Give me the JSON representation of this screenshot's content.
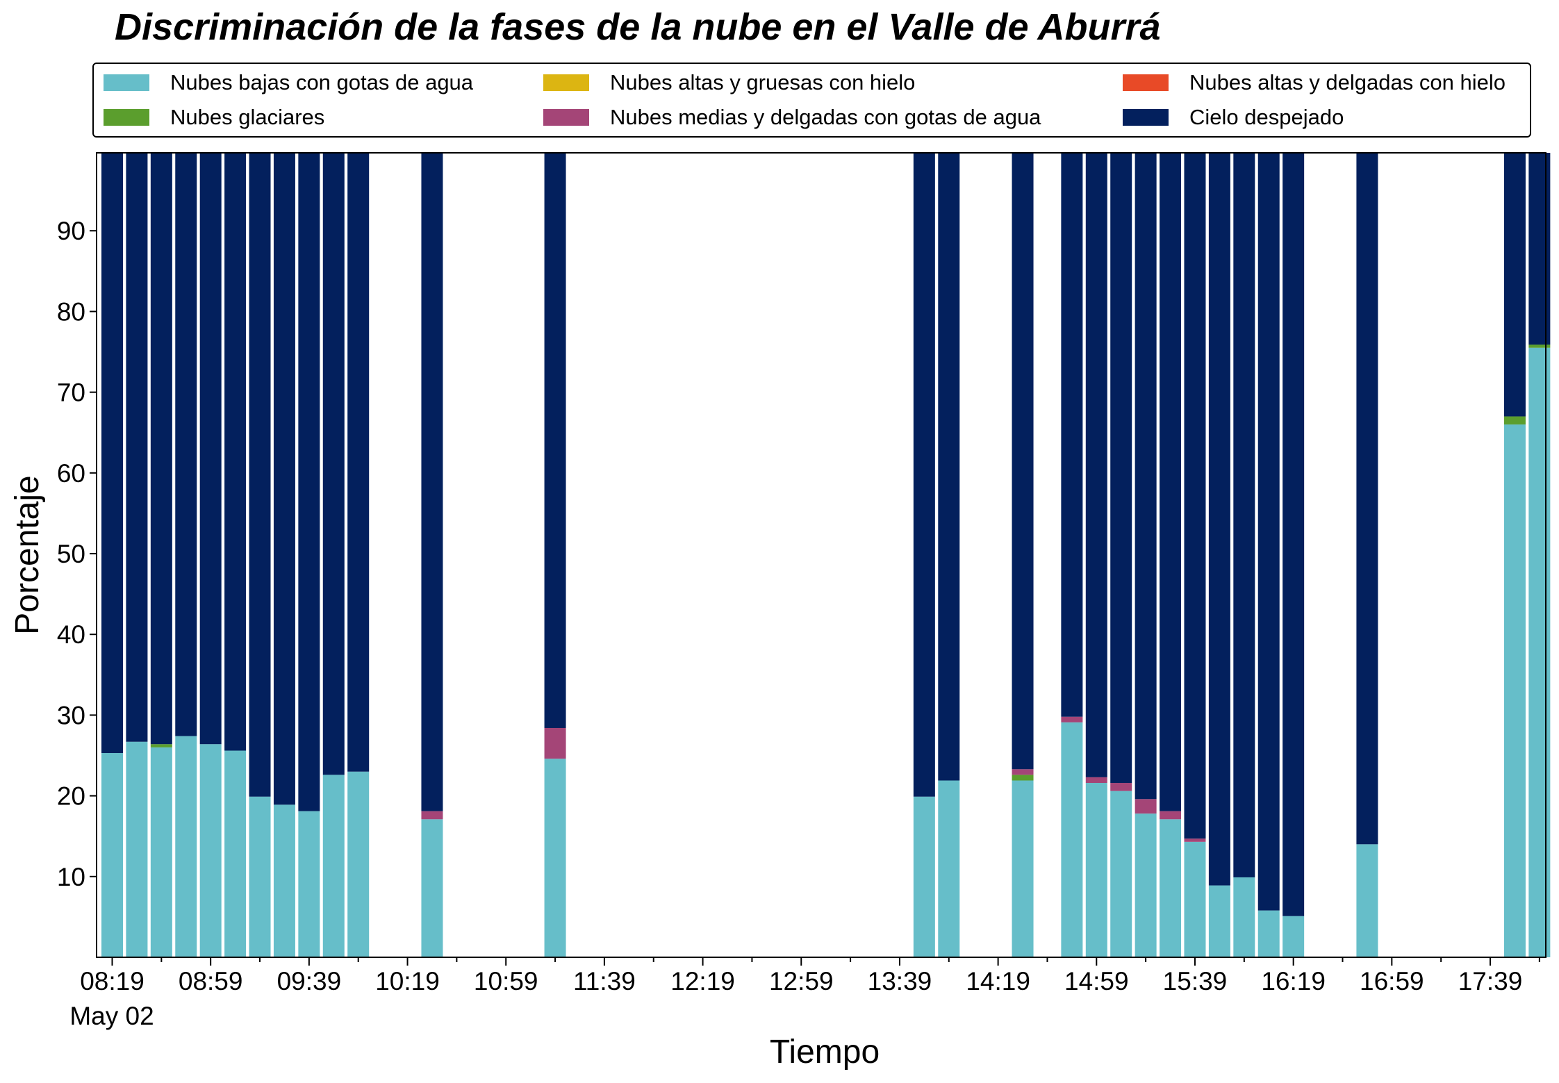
{
  "chart_data": {
    "type": "bar",
    "stacked": true,
    "title": "Discriminación de la fases de la nube en el Valle de Aburrá",
    "xlabel": "Tiempo",
    "ylabel": "Porcentaje",
    "ylim": [
      0,
      100
    ],
    "yticks": [
      10,
      20,
      30,
      40,
      50,
      60,
      70,
      80,
      90
    ],
    "x_tick_labels": [
      "08:19",
      "08:59",
      "09:39",
      "10:19",
      "10:59",
      "11:39",
      "12:19",
      "12:59",
      "13:39",
      "14:19",
      "14:59",
      "15:39",
      "16:19",
      "16:59",
      "17:39"
    ],
    "x_date_label": "May 02",
    "x_range_slots": 59,
    "grid": false,
    "legend_placement": "top",
    "slots": [
      0,
      1,
      2,
      3,
      4,
      5,
      6,
      7,
      8,
      9,
      10,
      13,
      18,
      33,
      34,
      37,
      39,
      40,
      41,
      42,
      43,
      44,
      45,
      46,
      47,
      48,
      51,
      57,
      58
    ],
    "series": [
      {
        "name": "Nubes bajas con gotas de agua",
        "color": "#66BEC9",
        "values": [
          25.3,
          26.7,
          26.0,
          27.4,
          26.4,
          25.6,
          19.9,
          18.9,
          18.1,
          22.6,
          23.0,
          17.1,
          24.6,
          19.9,
          21.9,
          21.9,
          29.1,
          21.6,
          20.6,
          17.8,
          17.1,
          14.3,
          8.9,
          9.9,
          5.8,
          5.1,
          14.0,
          66.0,
          75.5
        ]
      },
      {
        "name": "Nubes glaciares",
        "color": "#5B9E2D",
        "values": [
          0,
          0,
          0.4,
          0,
          0,
          0,
          0,
          0,
          0,
          0,
          0,
          0,
          0,
          0,
          0,
          0.7,
          0,
          0,
          0,
          0,
          0,
          0,
          0,
          0,
          0,
          0,
          0,
          1.0,
          0.4
        ]
      },
      {
        "name": "Nubes altas y gruesas con hielo",
        "color": "#DCB512",
        "values": [
          0,
          0,
          0,
          0,
          0,
          0,
          0,
          0,
          0,
          0,
          0,
          0,
          0,
          0,
          0,
          0,
          0,
          0,
          0,
          0,
          0,
          0,
          0,
          0,
          0,
          0,
          0,
          0,
          0
        ]
      },
      {
        "name": "Nubes medias y delgadas con gotas de agua",
        "color": "#A44577",
        "values": [
          0,
          0,
          0,
          0,
          0,
          0,
          0,
          0,
          0,
          0,
          0,
          1.0,
          3.8,
          0,
          0,
          0.7,
          0.7,
          0.7,
          1.0,
          1.8,
          1.0,
          0.4,
          0,
          0,
          0,
          0,
          0,
          0,
          0
        ]
      },
      {
        "name": "Nubes altas y delgadas con hielo",
        "color": "#E84A27",
        "values": [
          0,
          0,
          0,
          0,
          0,
          0,
          0,
          0,
          0,
          0,
          0,
          0,
          0,
          0,
          0,
          0,
          0,
          0,
          0,
          0,
          0,
          0,
          0,
          0,
          0,
          0,
          0,
          0,
          0
        ]
      },
      {
        "name": "Cielo despejado",
        "color": "#03205D",
        "values": [
          74.7,
          73.3,
          73.6,
          72.6,
          73.6,
          74.4,
          80.1,
          81.1,
          81.9,
          77.4,
          77.0,
          81.9,
          71.6,
          80.1,
          78.1,
          76.7,
          70.2,
          77.7,
          78.4,
          80.4,
          81.9,
          85.3,
          91.1,
          90.1,
          94.2,
          94.9,
          86.0,
          33.0,
          24.1
        ]
      }
    ]
  },
  "legend": {
    "items": [
      {
        "label": "Nubes bajas con gotas de agua",
        "color": "#66BEC9"
      },
      {
        "label": "Nubes altas y gruesas con hielo",
        "color": "#DCB512"
      },
      {
        "label": "Nubes altas y delgadas con hielo",
        "color": "#E84A27"
      },
      {
        "label": "Nubes glaciares",
        "color": "#5B9E2D"
      },
      {
        "label": "Nubes medias y delgadas con gotas de agua",
        "color": "#A44577"
      },
      {
        "label": "Cielo despejado",
        "color": "#03205D"
      }
    ]
  }
}
